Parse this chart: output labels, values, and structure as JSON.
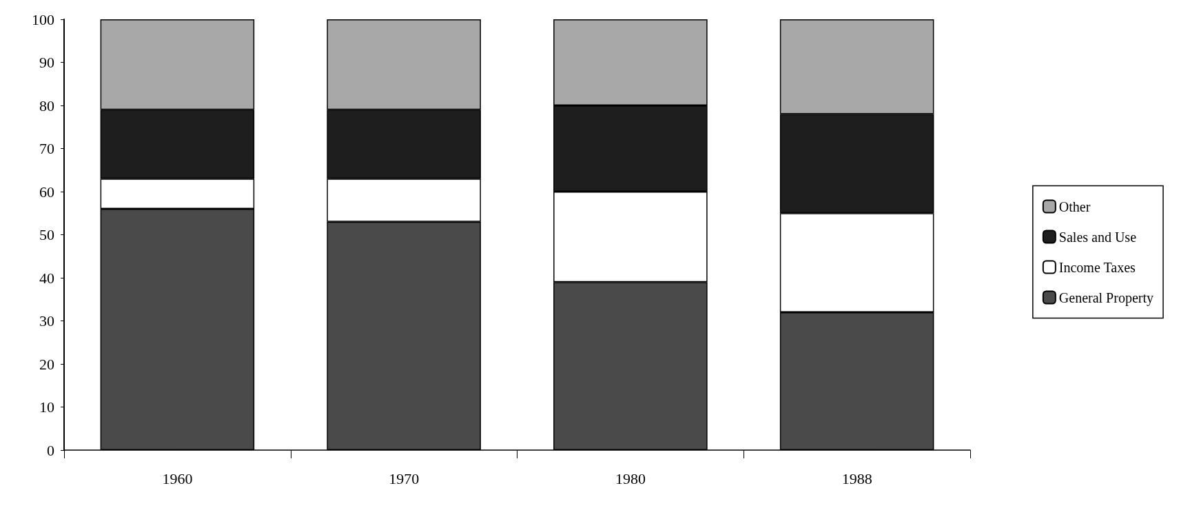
{
  "chart_data": {
    "type": "bar",
    "stacked": true,
    "categories": [
      "1960",
      "1970",
      "1980",
      "1988"
    ],
    "series": [
      {
        "name": "General Property",
        "color": "#4a4a4a",
        "values": [
          56,
          53,
          39,
          32
        ]
      },
      {
        "name": "Income Taxes",
        "color": "#ffffff",
        "values": [
          7,
          10,
          21,
          23
        ]
      },
      {
        "name": "Sales and Use",
        "color": "#1e1e1e",
        "values": [
          16,
          16,
          20,
          23
        ]
      },
      {
        "name": "Other",
        "color": "#a8a8a8",
        "values": [
          21,
          21,
          20,
          22
        ]
      }
    ],
    "ylim": [
      0,
      100
    ],
    "yticks": [
      0,
      10,
      20,
      30,
      40,
      50,
      60,
      70,
      80,
      90,
      100
    ],
    "grid": false,
    "legend": "right"
  }
}
